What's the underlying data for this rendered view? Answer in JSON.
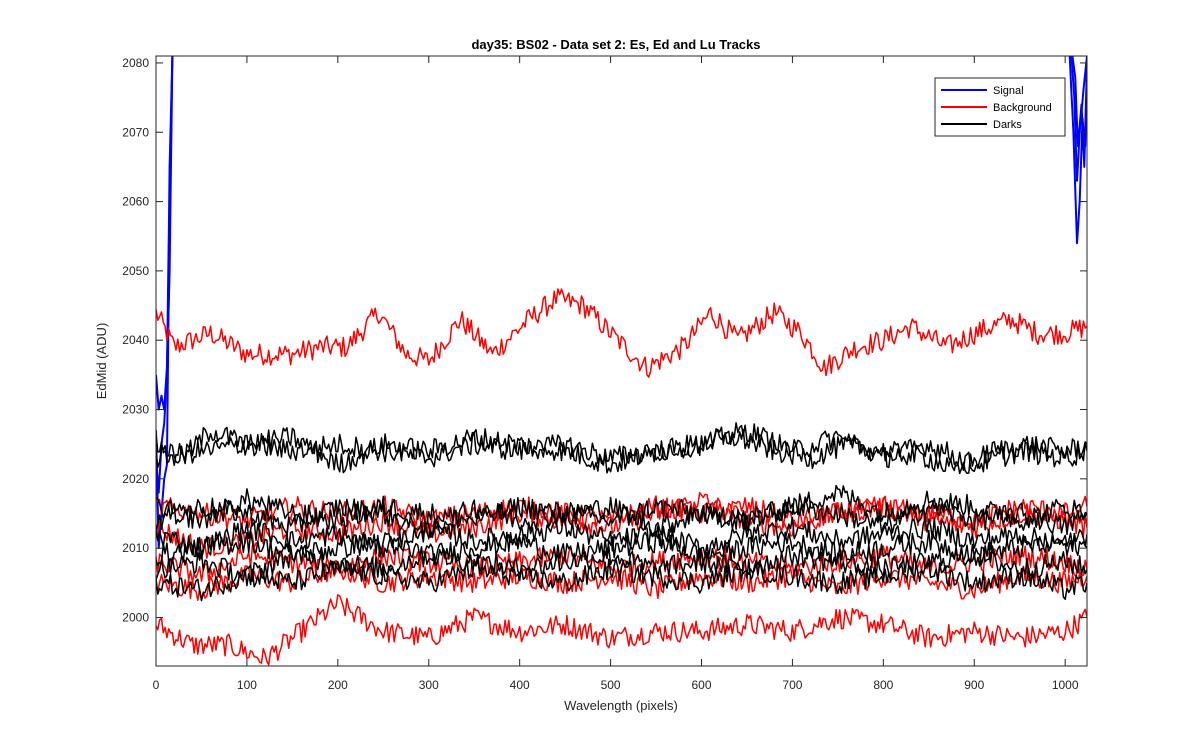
{
  "chart_data": {
    "type": "line",
    "title": "day35: BS02 - Data set 2: Es, Ed and Lu Tracks",
    "xlabel": "Wavelength (pixels)",
    "ylabel": "EdMid (ADU)",
    "xlim": [
      0,
      1024
    ],
    "ylim": [
      1993,
      2081
    ],
    "xticks": [
      0,
      100,
      200,
      300,
      400,
      500,
      600,
      700,
      800,
      900,
      1000
    ],
    "yticks": [
      2000,
      2010,
      2020,
      2030,
      2040,
      2050,
      2060,
      2070,
      2080
    ],
    "grid": false,
    "box": true,
    "legend": {
      "location": "top-right",
      "entries": [
        {
          "name": "Signal",
          "color": "#0000ff"
        },
        {
          "name": "Background",
          "color": "#ff0000"
        },
        {
          "name": "Darks",
          "color": "#000000"
        }
      ]
    },
    "series": [
      {
        "group": "Signal",
        "color": "#0000ff",
        "x": [
          0,
          3,
          6,
          9,
          12,
          15,
          18
        ],
        "y": [
          2035,
          2030,
          2032,
          2030,
          2036,
          2050,
          2081
        ]
      },
      {
        "group": "Signal",
        "color": "#0000ff",
        "x": [
          0,
          3,
          6,
          9,
          12,
          15,
          18
        ],
        "y": [
          2027,
          2010,
          2015,
          2020,
          2022,
          2060,
          2081
        ]
      },
      {
        "group": "Signal",
        "color": "#0000ff",
        "x": [
          0,
          3,
          6,
          9,
          12,
          15,
          18
        ],
        "y": [
          2023,
          2018,
          2025,
          2028,
          2035,
          2065,
          2081
        ]
      },
      {
        "group": "Signal",
        "color": "#0000ff",
        "x": [
          1005,
          1009,
          1013,
          1016,
          1019,
          1022,
          1024
        ],
        "y": [
          2081,
          2070,
          2054,
          2060,
          2072,
          2068,
          2078
        ]
      },
      {
        "group": "Signal",
        "color": "#0000ff",
        "x": [
          1007,
          1010,
          1013,
          1016,
          1020,
          1024
        ],
        "y": [
          2081,
          2075,
          2063,
          2070,
          2076,
          2081
        ]
      },
      {
        "group": "Signal",
        "color": "#0000ff",
        "x": [
          1008,
          1011,
          1014,
          1018,
          1021,
          1024
        ],
        "y": [
          2081,
          2078,
          2068,
          2074,
          2065,
          2080
        ]
      },
      {
        "group": "Background",
        "color": "#ff0000",
        "x": [
          0,
          20,
          60,
          100,
          150,
          180,
          210,
          245,
          275,
          300,
          335,
          370,
          410,
          440,
          470,
          500,
          540,
          580,
          610,
          640,
          680,
          710,
          735,
          770,
          800,
          830,
          870,
          900,
          940,
          970,
          1000,
          1024
        ],
        "y": [
          2044,
          2039,
          2041,
          2038,
          2038,
          2039,
          2039,
          2044,
          2038,
          2037,
          2043,
          2038,
          2043,
          2046,
          2045,
          2041,
          2036,
          2039,
          2044,
          2040,
          2044,
          2041,
          2036,
          2039,
          2040,
          2042,
          2039,
          2041,
          2043,
          2041,
          2041,
          2042
        ]
      },
      {
        "group": "Background",
        "color": "#ff0000",
        "x": [
          0,
          40,
          80,
          120,
          160,
          200,
          250,
          300,
          350,
          400,
          450,
          500,
          550,
          600,
          650,
          700,
          750,
          800,
          850,
          900,
          950,
          1000,
          1024
        ],
        "y": [
          1999,
          1996,
          1996,
          1994,
          1998,
          2002,
          1998,
          1997,
          2000,
          1998,
          1999,
          1997,
          1998,
          1998,
          1999,
          1998,
          2000,
          1999,
          1997,
          1998,
          1997,
          1998,
          2000
        ]
      },
      {
        "group": "Background",
        "color": "#ff0000",
        "x": [
          0,
          50,
          100,
          150,
          200,
          250,
          300,
          350,
          400,
          450,
          500,
          550,
          600,
          650,
          700,
          750,
          800,
          850,
          900,
          950,
          1000,
          1024
        ],
        "y": [
          2005,
          2004,
          2006,
          2005,
          2007,
          2005,
          2006,
          2005,
          2006,
          2005,
          2006,
          2004,
          2006,
          2005,
          2006,
          2004,
          2006,
          2005,
          2004,
          2006,
          2005,
          2006
        ]
      },
      {
        "group": "Background",
        "color": "#ff0000",
        "x": [
          0,
          50,
          100,
          150,
          200,
          250,
          300,
          350,
          400,
          450,
          500,
          550,
          600,
          650,
          700,
          750,
          800,
          850,
          900,
          950,
          1000,
          1024
        ],
        "y": [
          2013,
          2010,
          2011,
          2013,
          2012,
          2014,
          2012,
          2013,
          2015,
          2014,
          2013,
          2015,
          2017,
          2014,
          2013,
          2015,
          2016,
          2014,
          2013,
          2015,
          2014,
          2013
        ]
      },
      {
        "group": "Background",
        "color": "#ff0000",
        "x": [
          0,
          50,
          100,
          150,
          200,
          250,
          300,
          350,
          400,
          450,
          500,
          550,
          600,
          650,
          700,
          750,
          800,
          850,
          900,
          950,
          1000,
          1024
        ],
        "y": [
          2016,
          2015,
          2014,
          2016,
          2015,
          2016,
          2014,
          2015,
          2016,
          2015,
          2014,
          2016,
          2015,
          2016,
          2014,
          2015,
          2016,
          2015,
          2014,
          2016,
          2015,
          2016
        ]
      },
      {
        "group": "Background",
        "color": "#ff0000",
        "x": [
          0,
          50,
          100,
          150,
          200,
          250,
          300,
          350,
          400,
          450,
          500,
          550,
          600,
          650,
          700,
          750,
          800,
          850,
          900,
          950,
          1000,
          1024
        ],
        "y": [
          2008,
          2006,
          2009,
          2008,
          2007,
          2009,
          2008,
          2007,
          2008,
          2009,
          2007,
          2008,
          2009,
          2008,
          2007,
          2008,
          2009,
          2007,
          2008,
          2009,
          2008,
          2007
        ]
      },
      {
        "group": "Darks",
        "color": "#000000",
        "x": [
          0,
          30,
          60,
          100,
          150,
          200,
          250,
          300,
          350,
          400,
          450,
          500,
          550,
          600,
          640,
          680,
          720,
          760,
          800,
          850,
          880,
          920,
          960,
          1000,
          1024
        ],
        "y": [
          2025,
          2023,
          2027,
          2025,
          2024,
          2025,
          2024,
          2023,
          2025,
          2024,
          2025,
          2023,
          2024,
          2025,
          2026,
          2024,
          2023,
          2025,
          2024,
          2023,
          2021,
          2024,
          2025,
          2024,
          2025
        ]
      },
      {
        "group": "Darks",
        "color": "#000000",
        "x": [
          0,
          50,
          100,
          150,
          200,
          250,
          300,
          350,
          400,
          450,
          500,
          550,
          600,
          650,
          700,
          750,
          800,
          850,
          900,
          950,
          1000,
          1024
        ],
        "y": [
          2023,
          2024,
          2025,
          2026,
          2022,
          2025,
          2024,
          2026,
          2025,
          2024,
          2022,
          2024,
          2025,
          2027,
          2024,
          2026,
          2023,
          2025,
          2022,
          2024,
          2023,
          2024
        ]
      },
      {
        "group": "Darks",
        "color": "#000000",
        "x": [
          0,
          50,
          100,
          150,
          200,
          250,
          300,
          350,
          400,
          450,
          500,
          550,
          600,
          650,
          700,
          750,
          800,
          850,
          900,
          950,
          1000,
          1024
        ],
        "y": [
          2014,
          2016,
          2015,
          2013,
          2016,
          2015,
          2012,
          2016,
          2014,
          2015,
          2016,
          2013,
          2015,
          2014,
          2016,
          2015,
          2013,
          2016,
          2014,
          2015,
          2013,
          2015
        ]
      },
      {
        "group": "Darks",
        "color": "#000000",
        "x": [
          0,
          50,
          100,
          150,
          200,
          250,
          300,
          350,
          400,
          450,
          500,
          550,
          600,
          650,
          700,
          750,
          800,
          850,
          900,
          950,
          1000,
          1024
        ],
        "y": [
          2012,
          2010,
          2013,
          2011,
          2012,
          2010,
          2013,
          2011,
          2012,
          2013,
          2011,
          2012,
          2010,
          2012,
          2013,
          2011,
          2012,
          2013,
          2011,
          2012,
          2010,
          2012
        ]
      },
      {
        "group": "Darks",
        "color": "#000000",
        "x": [
          0,
          50,
          100,
          150,
          200,
          250,
          300,
          350,
          400,
          450,
          500,
          550,
          600,
          650,
          700,
          750,
          800,
          850,
          900,
          950,
          1000,
          1024
        ],
        "y": [
          2009,
          2010,
          2011,
          2009,
          2010,
          2011,
          2009,
          2010,
          2011,
          2009,
          2010,
          2011,
          2009,
          2010,
          2011,
          2009,
          2010,
          2011,
          2009,
          2010,
          2011,
          2010
        ]
      },
      {
        "group": "Darks",
        "color": "#000000",
        "x": [
          0,
          50,
          100,
          150,
          200,
          250,
          300,
          350,
          400,
          450,
          500,
          550,
          600,
          650,
          700,
          750,
          800,
          850,
          900,
          950,
          1000,
          1024
        ],
        "y": [
          2005,
          2004,
          2006,
          2005,
          2007,
          2006,
          2005,
          2007,
          2006,
          2005,
          2007,
          2006,
          2005,
          2007,
          2006,
          2005,
          2006,
          2007,
          2005,
          2006,
          2004,
          2005
        ]
      },
      {
        "group": "Darks",
        "color": "#000000",
        "x": [
          0,
          50,
          100,
          150,
          200,
          250,
          300,
          350,
          400,
          450,
          500,
          550,
          600,
          650,
          700,
          750,
          800,
          850,
          900,
          950,
          1000,
          1024
        ],
        "y": [
          2016,
          2014,
          2017,
          2015,
          2014,
          2016,
          2015,
          2014,
          2016,
          2015,
          2014,
          2016,
          2015,
          2014,
          2016,
          2018,
          2015,
          2017,
          2016,
          2014,
          2016,
          2015
        ]
      },
      {
        "group": "Darks",
        "color": "#000000",
        "x": [
          0,
          50,
          100,
          150,
          200,
          250,
          300,
          350,
          400,
          450,
          500,
          550,
          600,
          650,
          700,
          750,
          800,
          850,
          900,
          950,
          1000,
          1024
        ],
        "y": [
          2007,
          2008,
          2006,
          2009,
          2008,
          2007,
          2009,
          2008,
          2007,
          2008,
          2009,
          2007,
          2008,
          2007,
          2009,
          2008,
          2007,
          2008,
          2009,
          2007,
          2008,
          2007
        ]
      }
    ]
  }
}
